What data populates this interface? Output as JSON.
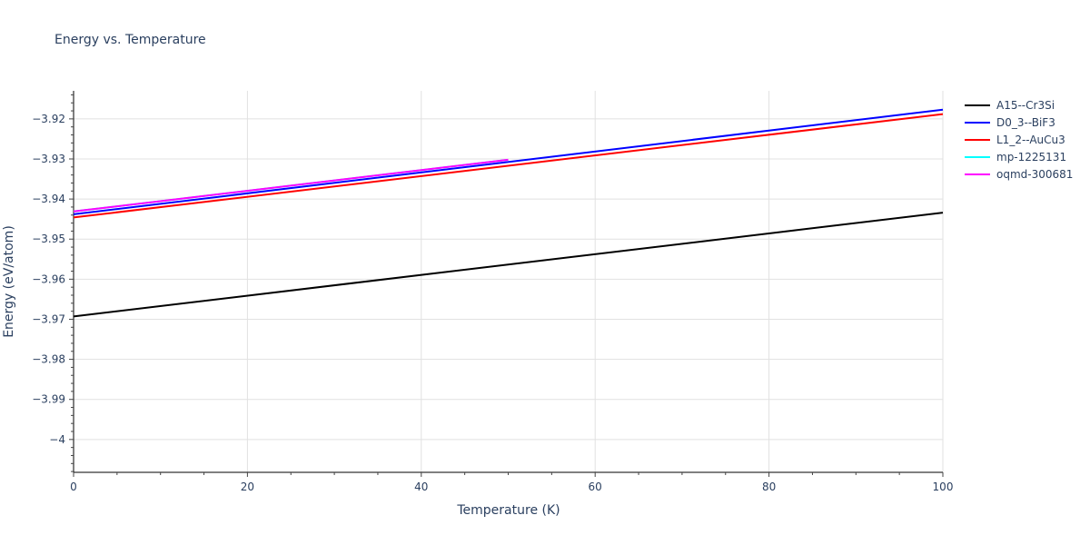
{
  "chart_data": {
    "type": "line",
    "title": "Energy vs. Temperature",
    "xlabel": "Temperature (K)",
    "ylabel": "Energy (eV/atom)",
    "xlim": [
      0,
      100
    ],
    "ylim": [
      -4.0082,
      -3.913
    ],
    "x_ticks": [
      0,
      20,
      40,
      60,
      80,
      100
    ],
    "y_ticks": [
      -3.92,
      -3.93,
      -3.94,
      -3.95,
      -3.96,
      -3.97,
      -3.98,
      -3.99,
      -4
    ],
    "y_tick_labels": [
      "−3.92",
      "−3.93",
      "−3.94",
      "−3.95",
      "−3.96",
      "−3.97",
      "−3.98",
      "−3.99",
      "−4"
    ],
    "grid": true,
    "legend_position": "right",
    "series": [
      {
        "name": "A15--Cr3Si",
        "color": "#000000",
        "x": [
          0,
          100
        ],
        "values": [
          -3.9693,
          -3.9434
        ]
      },
      {
        "name": "D0_3--BiF3",
        "color": "#0000ff",
        "x": [
          0,
          100
        ],
        "values": [
          -3.9438,
          -3.9177
        ]
      },
      {
        "name": "L1_2--AuCu3",
        "color": "#ff0000",
        "x": [
          0,
          100
        ],
        "values": [
          -3.9446,
          -3.9188
        ]
      },
      {
        "name": "mp-1225131",
        "color": "#00ffff",
        "x": [
          0,
          50
        ],
        "values": [
          -3.9431,
          -3.9302
        ]
      },
      {
        "name": "oqmd-300681",
        "color": "#ff00ff",
        "x": [
          0,
          50
        ],
        "values": [
          -3.9431,
          -3.9302
        ]
      }
    ]
  }
}
